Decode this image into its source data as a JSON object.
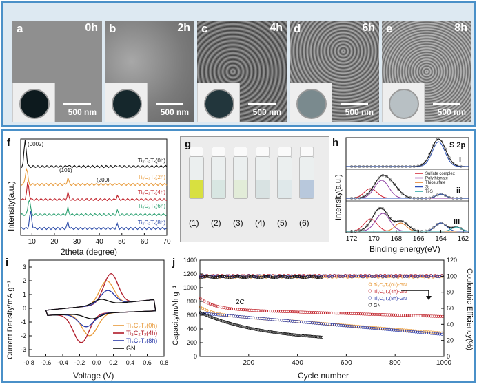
{
  "sem_panels": [
    {
      "letter": "a",
      "time": "0h",
      "scale": "500 nm",
      "tone": "#9a9a9a",
      "dish": "#0d1a1e"
    },
    {
      "letter": "b",
      "time": "2h",
      "scale": "500 nm",
      "tone": "#8c8c8c",
      "dish": "#15272c"
    },
    {
      "letter": "c",
      "time": "4h",
      "scale": "500 nm",
      "tone": "#6a6a6a",
      "dish": "#22363c"
    },
    {
      "letter": "d",
      "time": "6h",
      "scale": "500 nm",
      "tone": "#7e7e7e",
      "dish": "#7a8a8e"
    },
    {
      "letter": "e",
      "time": "8h",
      "scale": "500 nm",
      "tone": "#7a7a7a",
      "dish": "#b8c0c4"
    }
  ],
  "panel_f": {
    "letter": "f",
    "ylabel": "Intensity(a.u.)",
    "xlabel": "2theta (degree)",
    "ticks": [
      "10",
      "20",
      "30",
      "40",
      "50",
      "60",
      "70"
    ],
    "peak_labels": [
      "(0002)",
      "(101)",
      "(200)"
    ],
    "series": [
      {
        "name": "Ti3C2Tx(0h)",
        "label": "Ti₃C₂Tₓ(0h)",
        "color": "#111111"
      },
      {
        "name": "Ti3C2Tx(2h)",
        "label": "Ti₃C₂Tₓ(2h)",
        "color": "#e89a3a"
      },
      {
        "name": "Ti3C2Tx(4h)",
        "label": "Ti₃C₂Tₓ(4h)",
        "color": "#c0222a"
      },
      {
        "name": "Ti3C2Tx(6h)",
        "label": "Ti₃C₂Tₓ(6h)",
        "color": "#2aa070"
      },
      {
        "name": "Ti3C2Tx(8h)",
        "label": "Ti₃C₂Tₓ(8h)",
        "color": "#2a4aa8"
      }
    ]
  },
  "panel_g": {
    "letter": "g",
    "vials": [
      {
        "label": "(1)",
        "liquid": "#d8e040"
      },
      {
        "label": "(2)",
        "liquid": "#d8e6e2"
      },
      {
        "label": "(3)",
        "liquid": "#e2ecd8"
      },
      {
        "label": "(4)",
        "liquid": "#d8e2e2"
      },
      {
        "label": "(5)",
        "liquid": "#dfe8ea"
      },
      {
        "label": "(6)",
        "liquid": "#b8c8dc"
      }
    ]
  },
  "panel_h": {
    "letter": "h",
    "title": "S 2p",
    "ylabel": "Intensity(a.u.)",
    "xlabel": "Binding energy(eV)",
    "ticks": [
      "172",
      "170",
      "168",
      "166",
      "164",
      "162"
    ],
    "sublabels": [
      "i",
      "ii",
      "iii"
    ],
    "legend": [
      {
        "label": "Sulfate complex",
        "color": "#d02030"
      },
      {
        "label": "Polythionate",
        "color": "#8a3aa0"
      },
      {
        "label": "Thiosulfate",
        "color": "#e07820"
      },
      {
        "label": "S₂",
        "color": "#2a50b8"
      },
      {
        "label": "Ti-S",
        "color": "#20a0a0"
      }
    ]
  },
  "panel_i": {
    "letter": "i",
    "ylabel": "Current Density/mA g⁻¹",
    "xlabel": "Voltage (V)",
    "xticks": [
      "-0.8",
      "-0.6",
      "-0.4",
      "-0.2",
      "0.0",
      "0.2",
      "0.4",
      "0.6",
      "0.8"
    ],
    "yticks": [
      "3",
      "2",
      "1",
      "0",
      "-1",
      "-2",
      "-3"
    ],
    "legend": [
      {
        "label": "Ti₃C₂Tₓ(0h)",
        "color": "#e89a3a"
      },
      {
        "label": "Ti₃C₂Tₓ(4h)",
        "color": "#b01a28"
      },
      {
        "label": "Ti₃C₂Tₓ(8h)",
        "color": "#2a3aa8"
      },
      {
        "label": "GN",
        "color": "#111111"
      }
    ]
  },
  "panel_j": {
    "letter": "j",
    "ylabel": "Capacity/mAh g⁻¹",
    "y2label": "Coulombic Efficiency(%)",
    "xlabel": "Cycle number",
    "rate": "2C",
    "xticks": [
      "200",
      "400",
      "600",
      "800",
      "1000"
    ],
    "yticks": [
      "1400",
      "1200",
      "1000",
      "800",
      "600",
      "400",
      "200",
      "0"
    ],
    "y2ticks": [
      "120",
      "100",
      "80",
      "60",
      "40",
      "20",
      "0"
    ],
    "legend": [
      {
        "label": "Ti₃C₂Tₓ(0h)-GN",
        "color": "#e89a3a"
      },
      {
        "label": "Ti₃C₂Tₓ(4h)-GN",
        "color": "#c0222a"
      },
      {
        "label": "Ti₃C₂Tₓ(8h)-GN",
        "color": "#2a3aa8"
      },
      {
        "label": "GN",
        "color": "#111111"
      }
    ]
  }
}
